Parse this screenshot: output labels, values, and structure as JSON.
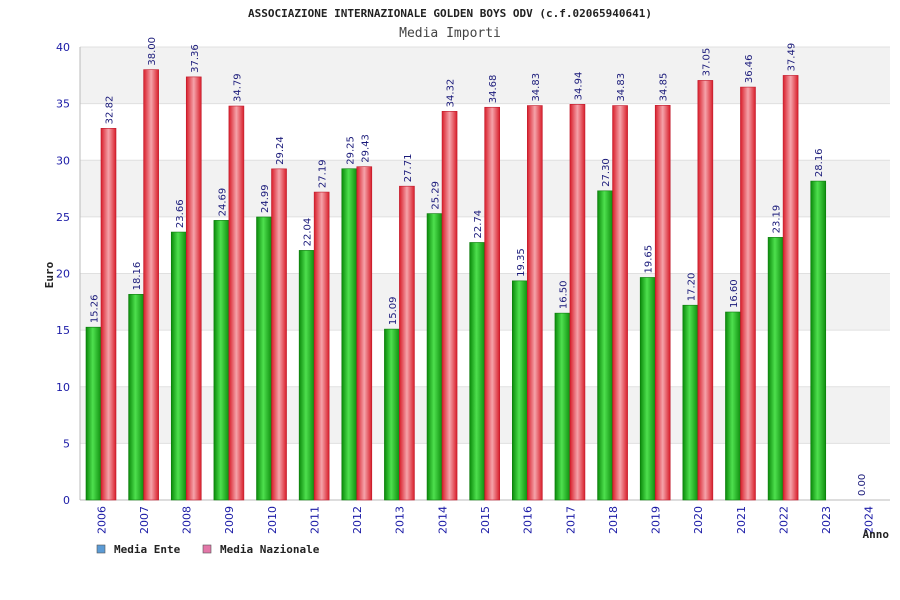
{
  "chart_data": {
    "type": "bar",
    "title": "ASSOCIAZIONE INTERNAZIONALE GOLDEN BOYS ODV (c.f.02065940641)",
    "subtitle": "Media Importi",
    "xlabel": "Anno",
    "ylabel": "Euro",
    "ylim": [
      0,
      40
    ],
    "yticks": [
      0,
      5,
      10,
      15,
      20,
      25,
      30,
      35,
      40
    ],
    "grid": true,
    "legend_position": "bottom-left",
    "categories": [
      "2006",
      "2007",
      "2008",
      "2009",
      "2010",
      "2011",
      "2012",
      "2013",
      "2014",
      "2015",
      "2016",
      "2017",
      "2018",
      "2019",
      "2020",
      "2021",
      "2022",
      "2023",
      "2024"
    ],
    "series": [
      {
        "name": "Media Ente",
        "color": "#22aa22",
        "legend_color": "#5b9bd5",
        "values": [
          15.26,
          18.16,
          23.66,
          24.69,
          24.99,
          22.04,
          29.25,
          15.09,
          25.29,
          22.74,
          19.35,
          16.5,
          27.3,
          19.65,
          17.2,
          16.6,
          23.19,
          28.16,
          0.0
        ],
        "labels": [
          "15.26",
          "18.16",
          "23.66",
          "24.69",
          "24.99",
          "22.04",
          "29.25",
          "15.09",
          "25.29",
          "22.74",
          "19.35",
          "16.50",
          "27.30",
          "19.65",
          "17.20",
          "16.60",
          "23.19",
          "28.16",
          "0.00"
        ]
      },
      {
        "name": "Media Nazionale",
        "color": "#e8323c",
        "legend_color": "#e377a8",
        "values": [
          32.82,
          38.0,
          37.36,
          34.79,
          29.24,
          27.19,
          29.43,
          27.71,
          34.32,
          34.68,
          34.83,
          34.94,
          34.83,
          34.85,
          37.05,
          36.46,
          37.49,
          null,
          null
        ],
        "labels": [
          "32.82",
          "38.00",
          "37.36",
          "34.79",
          "29.24",
          "27.19",
          "29.43",
          "27.71",
          "34.32",
          "34.68",
          "34.83",
          "34.94",
          "34.83",
          "34.85",
          "37.05",
          "36.46",
          "37.49",
          null,
          null
        ]
      }
    ]
  }
}
